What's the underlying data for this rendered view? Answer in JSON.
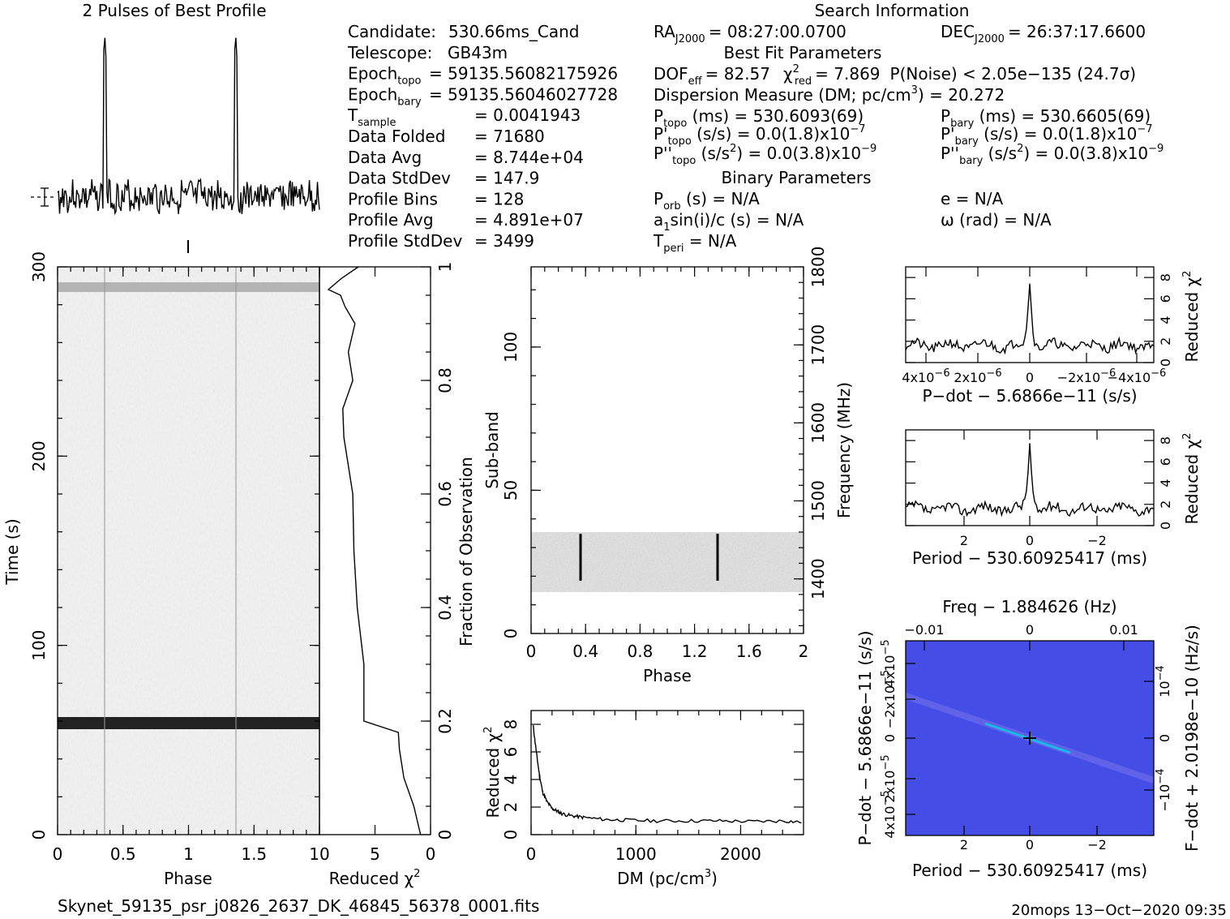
{
  "profile": {
    "title": "2 Pulses of Best Profile"
  },
  "header": {
    "search_title": "Search Information",
    "left": [
      {
        "label": "Candidate:",
        "value": "530.66ms_Cand"
      },
      {
        "label": "Telescope:",
        "value": "GB43m"
      },
      {
        "label": "Epoch",
        "sub": "topo",
        "value": "= 59135.56082175926"
      },
      {
        "label": "Epoch",
        "sub": "bary",
        "value": "= 59135.56046027728"
      },
      {
        "label": "T",
        "sub": "sample",
        "value": "=   0.0041943"
      },
      {
        "label": "Data Folded",
        "value": "=   71680"
      },
      {
        "label": "Data Avg",
        "value": "=   8.744e+04"
      },
      {
        "label": "Data StdDev",
        "value": "=   147.9"
      },
      {
        "label": "Profile Bins",
        "value": "=   128"
      },
      {
        "label": "Profile Avg",
        "value": "=   4.891e+07"
      },
      {
        "label": "Profile StdDev",
        "value": "=   3499"
      }
    ],
    "ra": "RA",
    "ra_sub": "J2000",
    "ra_value": "= 08:27:00.0700",
    "dec": "DEC",
    "dec_sub": "J2000",
    "dec_value": "= 26:37:17.6600",
    "best_fit": "Best Fit Parameters",
    "dof": "DOF",
    "dof_sub": "eff",
    "dof_value": "= 82.57",
    "chi": "χ",
    "chi_sup": "2",
    "chi_sub": "red",
    "chi_value": "= 7.869",
    "pnoise": "P(Noise) < 2.05e−135   (24.7σ)",
    "dm": "Dispersion Measure (DM; pc/cm",
    "dm_sup": "3",
    "dm_value": ") = 20.272",
    "ptopo": "P",
    "ptopo_sub": "topo",
    "ptopo_value": " (ms)  =   530.6093(69)",
    "pbary": "P",
    "pbary_sub": "bary",
    "pbary_value": " (ms)  =   530.6605(69)",
    "pdtopo": "P'",
    "pdtopo_sub": "topo",
    "pdtopo_value": " (s/s) = 0.0(1.8)x10",
    "pdtopo_exp": "−7",
    "pdbary": "P'",
    "pdbary_sub": "bary",
    "pdbary_value": " (s/s) = 0.0(1.8)x10",
    "pdbary_exp": "−7",
    "pddtopo": "P''",
    "pddtopo_sub": "topo",
    "pddtopo_value": " (s/s",
    "pddtopo_sup": "2",
    "pddtopo_value2": ") = 0.0(3.8)x10",
    "pddtopo_exp": "−9",
    "pddbary": "P''",
    "pddbary_sub": "bary",
    "pddbary_value": " (s/s",
    "pddbary_sup": "2",
    "pddbary_value2": ") = 0.0(3.8)x10",
    "pddbary_exp": "−9",
    "binary": "Binary Parameters",
    "porb": "P",
    "porb_sub": "orb",
    "porb_value": " (s) = N/A",
    "ecc": "e = N/A",
    "a1": "a",
    "a1_sub": "1",
    "a1_value": "sin(i)/c (s) = N/A",
    "omega": "ω (rad) = N/A",
    "tperi": "T",
    "tperi_sub": "peri",
    "tperi_value": " = N/A"
  },
  "chart_data": [
    {
      "type": "line",
      "name": "profile",
      "title": "2 Pulses of Best Profile",
      "x_range": [
        0,
        2
      ],
      "peaks_phase": [
        0.36,
        1.36
      ]
    },
    {
      "type": "heatmap",
      "name": "time-phase",
      "xlabel": "Phase",
      "ylabel": "Time (s)",
      "xlim": [
        0,
        2
      ],
      "ylim": [
        0,
        300
      ],
      "xticks": [
        "0",
        "0.5",
        "1",
        "1.5"
      ],
      "yticks": [
        "0",
        "100",
        "200",
        "300"
      ],
      "dark_band_time_s": [
        57,
        62
      ],
      "faint_band_time_s": [
        285,
        290
      ]
    },
    {
      "type": "line",
      "name": "time-chi2",
      "xlabel": "Reduced χ",
      "xlabel_sup": "2",
      "xlim": [
        10,
        0
      ],
      "xticks": [
        "10",
        "5",
        "0"
      ],
      "ylabel_right": "Fraction of Observation",
      "right_ticks": [
        "0",
        "0.2",
        "0.4",
        "0.6",
        "0.8",
        "1"
      ],
      "fraction": [
        0.0,
        0.05,
        0.1,
        0.15,
        0.18,
        0.2,
        0.21,
        0.3,
        0.4,
        0.5,
        0.6,
        0.7,
        0.75,
        0.8,
        0.85,
        0.9,
        0.93,
        0.95,
        0.96,
        0.98,
        1.0
      ],
      "chi2": [
        0.9,
        1.5,
        2.4,
        2.8,
        2.9,
        6.0,
        6.0,
        6.0,
        6.6,
        6.9,
        7.0,
        7.8,
        7.9,
        7.0,
        7.4,
        6.8,
        7.7,
        8.1,
        9.2,
        8.0,
        6.5
      ]
    },
    {
      "type": "heatmap",
      "name": "subband-phase",
      "xlabel": "Phase",
      "ylabel": "Sub-band",
      "ylabel_right": "Frequency (MHz)",
      "xlim": [
        0,
        2
      ],
      "ylim": [
        0,
        128
      ],
      "xticks": [
        "0",
        "0.4",
        "0.8",
        "1.2",
        "1.6",
        "2"
      ],
      "yticks": [
        "0",
        "50",
        "100"
      ],
      "right_ticks": [
        "1400",
        "1500",
        "1600",
        "1700",
        "1800"
      ],
      "band_subband": [
        15,
        35
      ],
      "pulse_phase": [
        0.36,
        1.36
      ]
    },
    {
      "type": "line",
      "name": "dm-chi2",
      "xlabel": "DM (pc/cm",
      "xlabel_sup": "3",
      "xlabel_end": ")",
      "ylabel": "Reduced χ",
      "ylabel_sup": "2",
      "xlim": [
        0,
        2600
      ],
      "ylim": [
        0,
        9
      ],
      "xticks": [
        "0",
        "1000",
        "2000"
      ],
      "yticks": [
        "0",
        "2",
        "4",
        "6",
        "8"
      ],
      "x": [
        20,
        50,
        80,
        110,
        150,
        200,
        250,
        300,
        400,
        500,
        700,
        900,
        1200,
        1500,
        1800,
        2100,
        2400,
        2600
      ],
      "y": [
        7.9,
        6.0,
        4.3,
        3.1,
        2.4,
        1.9,
        1.7,
        1.5,
        1.35,
        1.25,
        1.1,
        1.05,
        1.0,
        1.0,
        1.0,
        0.95,
        1.0,
        0.9
      ]
    },
    {
      "type": "line",
      "name": "pdot-chi2",
      "xlabel": "P−dot − 5.6866e−11 (s/s)",
      "ylabel_right": "Reduced χ",
      "ylabel_sup": "2",
      "xticks": [
        "4x10",
        "2x10",
        "0",
        "−2x10",
        "−4x10"
      ],
      "xtick_exp": "−6",
      "yticks": [
        "0",
        "2",
        "4",
        "6",
        "8"
      ],
      "peak_value": 7.87
    },
    {
      "type": "line",
      "name": "period-chi2",
      "xlabel": "Period − 530.60925417 (ms)",
      "ylabel_right": "Reduced χ",
      "ylabel_sup": "2",
      "xticks": [
        "2",
        "0",
        "−2"
      ],
      "yticks": [
        "0",
        "2",
        "4",
        "6",
        "8"
      ],
      "peak_value": 7.87
    },
    {
      "type": "heatmap",
      "name": "period-pdot",
      "title": "Freq − 1.884626 (Hz)",
      "xlabel": "Period − 530.60925417 (ms)",
      "ylabel": "P−dot − 5.6866e−11 (s/s)",
      "ylabel_right": "F−dot + 2.0198e−10 (Hz/s)",
      "top_ticks": [
        "−0.01",
        "0",
        "0.01"
      ],
      "bottom_ticks": [
        "2",
        "0",
        "−2"
      ],
      "left_ticks": [
        "4x10",
        "−2x10",
        "0",
        "2x10",
        "4x10"
      ],
      "left_exp": "−5",
      "right_ticks": [
        "10",
        "0",
        "−10"
      ],
      "right_exp": "−4",
      "colors": {
        "base": "#4a55ee",
        "light": "#c9c6f2",
        "cyan": "#19b8e6"
      }
    }
  ],
  "footer": {
    "filename": "Skynet_59135_psr_j0826_2637_DK_46845_56378_0001.fits",
    "stamp": "20mops 13−Oct−2020 09:35"
  }
}
